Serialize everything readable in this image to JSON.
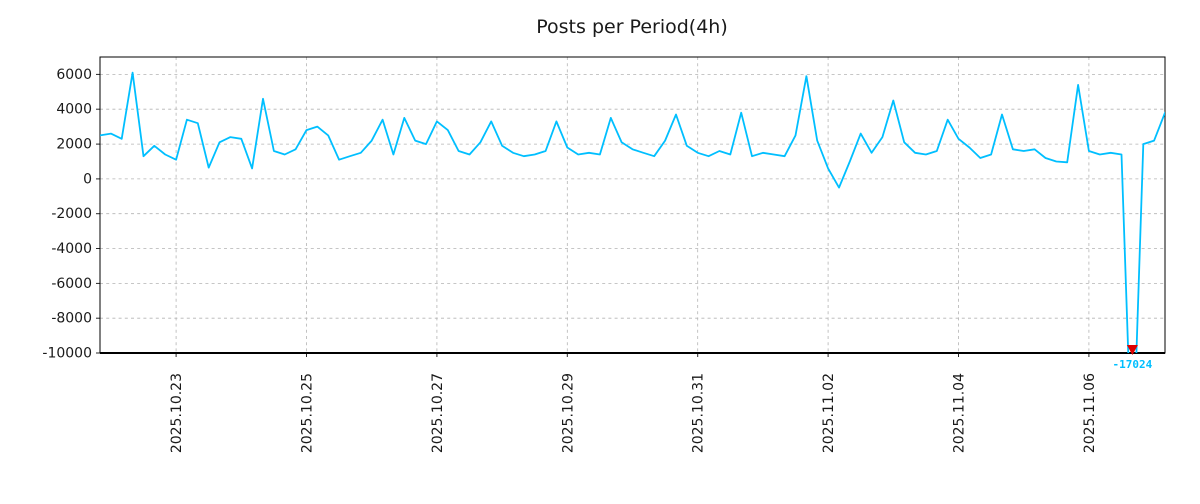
{
  "title": "Posts per Period(4h)",
  "chart_data": {
    "type": "line",
    "title": "Posts per Period(4h)",
    "period": "4h",
    "grid": "dashed",
    "legend": "none",
    "line_color": "#00BFFF",
    "ylim": [
      -10000,
      7000
    ],
    "y_ticks": [
      6000,
      4000,
      2000,
      0,
      -2000,
      -4000,
      -6000,
      -8000,
      -10000
    ],
    "x_ticks": [
      {
        "label": "2025.10.23",
        "index": 7
      },
      {
        "label": "2025.10.25",
        "index": 19
      },
      {
        "label": "2025.10.27",
        "index": 31
      },
      {
        "label": "2025.10.29",
        "index": 43
      },
      {
        "label": "2025.10.31",
        "index": 55
      },
      {
        "label": "2025.11.02",
        "index": 67
      },
      {
        "label": "2025.11.04",
        "index": 79
      },
      {
        "label": "2025.11.06",
        "index": 91
      }
    ],
    "series": [
      {
        "name": "posts",
        "start": "2025-10-21 20:00",
        "interval_hours": 4,
        "values": [
          2500,
          2600,
          2300,
          6100,
          1300,
          1900,
          1400,
          1100,
          3400,
          3200,
          650,
          2100,
          2400,
          2300,
          600,
          4600,
          1600,
          1400,
          1700,
          2800,
          3000,
          2500,
          1100,
          1300,
          1500,
          2200,
          3400,
          1400,
          3500,
          2200,
          2000,
          3300,
          2800,
          1600,
          1400,
          2100,
          3300,
          1900,
          1500,
          1300,
          1400,
          1600,
          3300,
          1800,
          1400,
          1500,
          1400,
          3500,
          2100,
          1700,
          1500,
          1300,
          2200,
          3700,
          1900,
          1500,
          1300,
          1600,
          1400,
          3800,
          1300,
          1500,
          1400,
          1300,
          2500,
          5900,
          2200,
          600,
          -500,
          1000,
          2600,
          1500,
          2400,
          4500,
          2100,
          1500,
          1400,
          1600,
          3400,
          2300,
          1800,
          1200,
          1400,
          3700,
          1700,
          1600,
          1700,
          1200,
          1000,
          950,
          5400,
          1600,
          1400,
          1500,
          1400,
          -17024,
          2000,
          2200,
          3800
        ]
      }
    ],
    "min_marker": {
      "shape": "triangle-down",
      "color": "#dd0000",
      "value": -17024,
      "label": "-17024",
      "label_color": "#00BFFF"
    }
  }
}
